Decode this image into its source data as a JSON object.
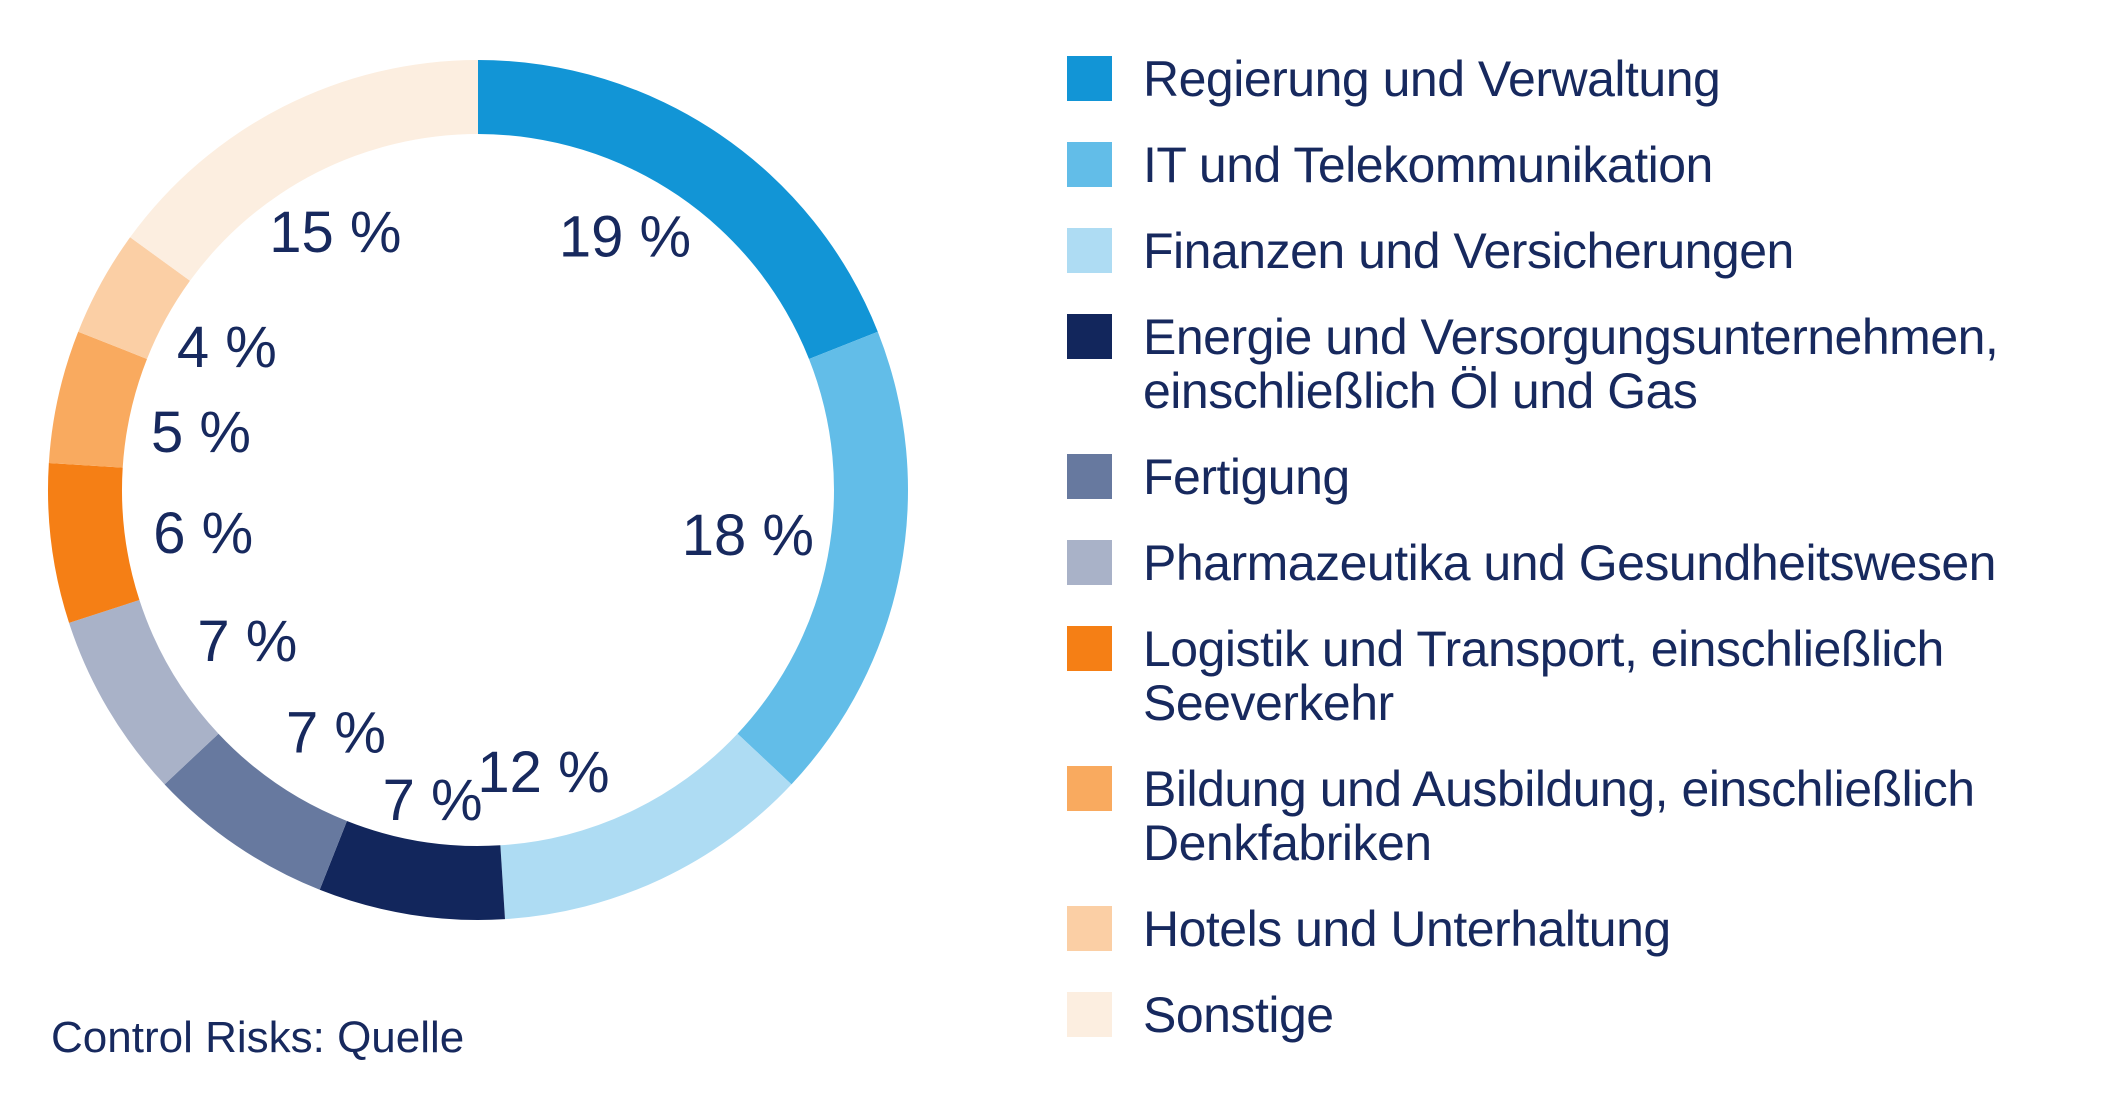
{
  "page": {
    "background": "#FFFFFF"
  },
  "colors": {
    "text": "#17295E"
  },
  "source_label": "Control Risks: Quelle",
  "chart_data": {
    "type": "pie",
    "subtype": "donut",
    "title": "",
    "start_angle_deg": 0,
    "direction": "clockwise",
    "legend_position": "right",
    "grid": false,
    "source": "Control Risks: Quelle",
    "series": [
      {
        "label": "Regierung und Verwaltung",
        "label_lines": [
          "Regierung und Verwaltung"
        ],
        "value": 19,
        "value_label": "19 %",
        "color": "#1295D6"
      },
      {
        "label": "IT und Telekommunikation",
        "label_lines": [
          "IT und Telekommunikation"
        ],
        "value": 18,
        "value_label": "18 %",
        "color": "#62BDE8"
      },
      {
        "label": "Finanzen und Versicherungen",
        "label_lines": [
          "Finanzen und Versicherungen"
        ],
        "value": 12,
        "value_label": "12 %",
        "color": "#AEDCF3"
      },
      {
        "label": "Energie und Versorgungsunternehmen, einschließlich Öl und Gas",
        "label_lines": [
          "Energie und Versorgungsunternehmen,",
          "einschließlich Öl und Gas"
        ],
        "value": 7,
        "value_label": "7 %",
        "color": "#12265C"
      },
      {
        "label": "Fertigung",
        "label_lines": [
          "Fertigung"
        ],
        "value": 7,
        "value_label": "7 %",
        "color": "#67799F"
      },
      {
        "label": "Pharmazeutika und Gesundheitswesen",
        "label_lines": [
          "Pharmazeutika und Gesundheitswesen"
        ],
        "value": 7,
        "value_label": "7 %",
        "color": "#A9B2C8"
      },
      {
        "label": "Logistik und Transport, einschließlich Seeverkehr",
        "label_lines": [
          "Logistik und Transport, einschließlich",
          "Seeverkehr"
        ],
        "value": 6,
        "value_label": "6 %",
        "color": "#F57F15"
      },
      {
        "label": "Bildung und Ausbildung, einschließlich Denkfabriken",
        "label_lines": [
          "Bildung und Ausbildung, einschließlich",
          "Denkfabriken"
        ],
        "value": 5,
        "value_label": "5 %",
        "color": "#F9AA5F"
      },
      {
        "label": "Hotels und Unterhaltung",
        "label_lines": [
          "Hotels und Unterhaltung"
        ],
        "value": 4,
        "value_label": "4 %",
        "color": "#FBCFA5"
      },
      {
        "label": "Sonstige",
        "label_lines": [
          "Sonstige"
        ],
        "value": 15,
        "value_label": "15 %",
        "color": "#FCEEE0"
      }
    ]
  }
}
